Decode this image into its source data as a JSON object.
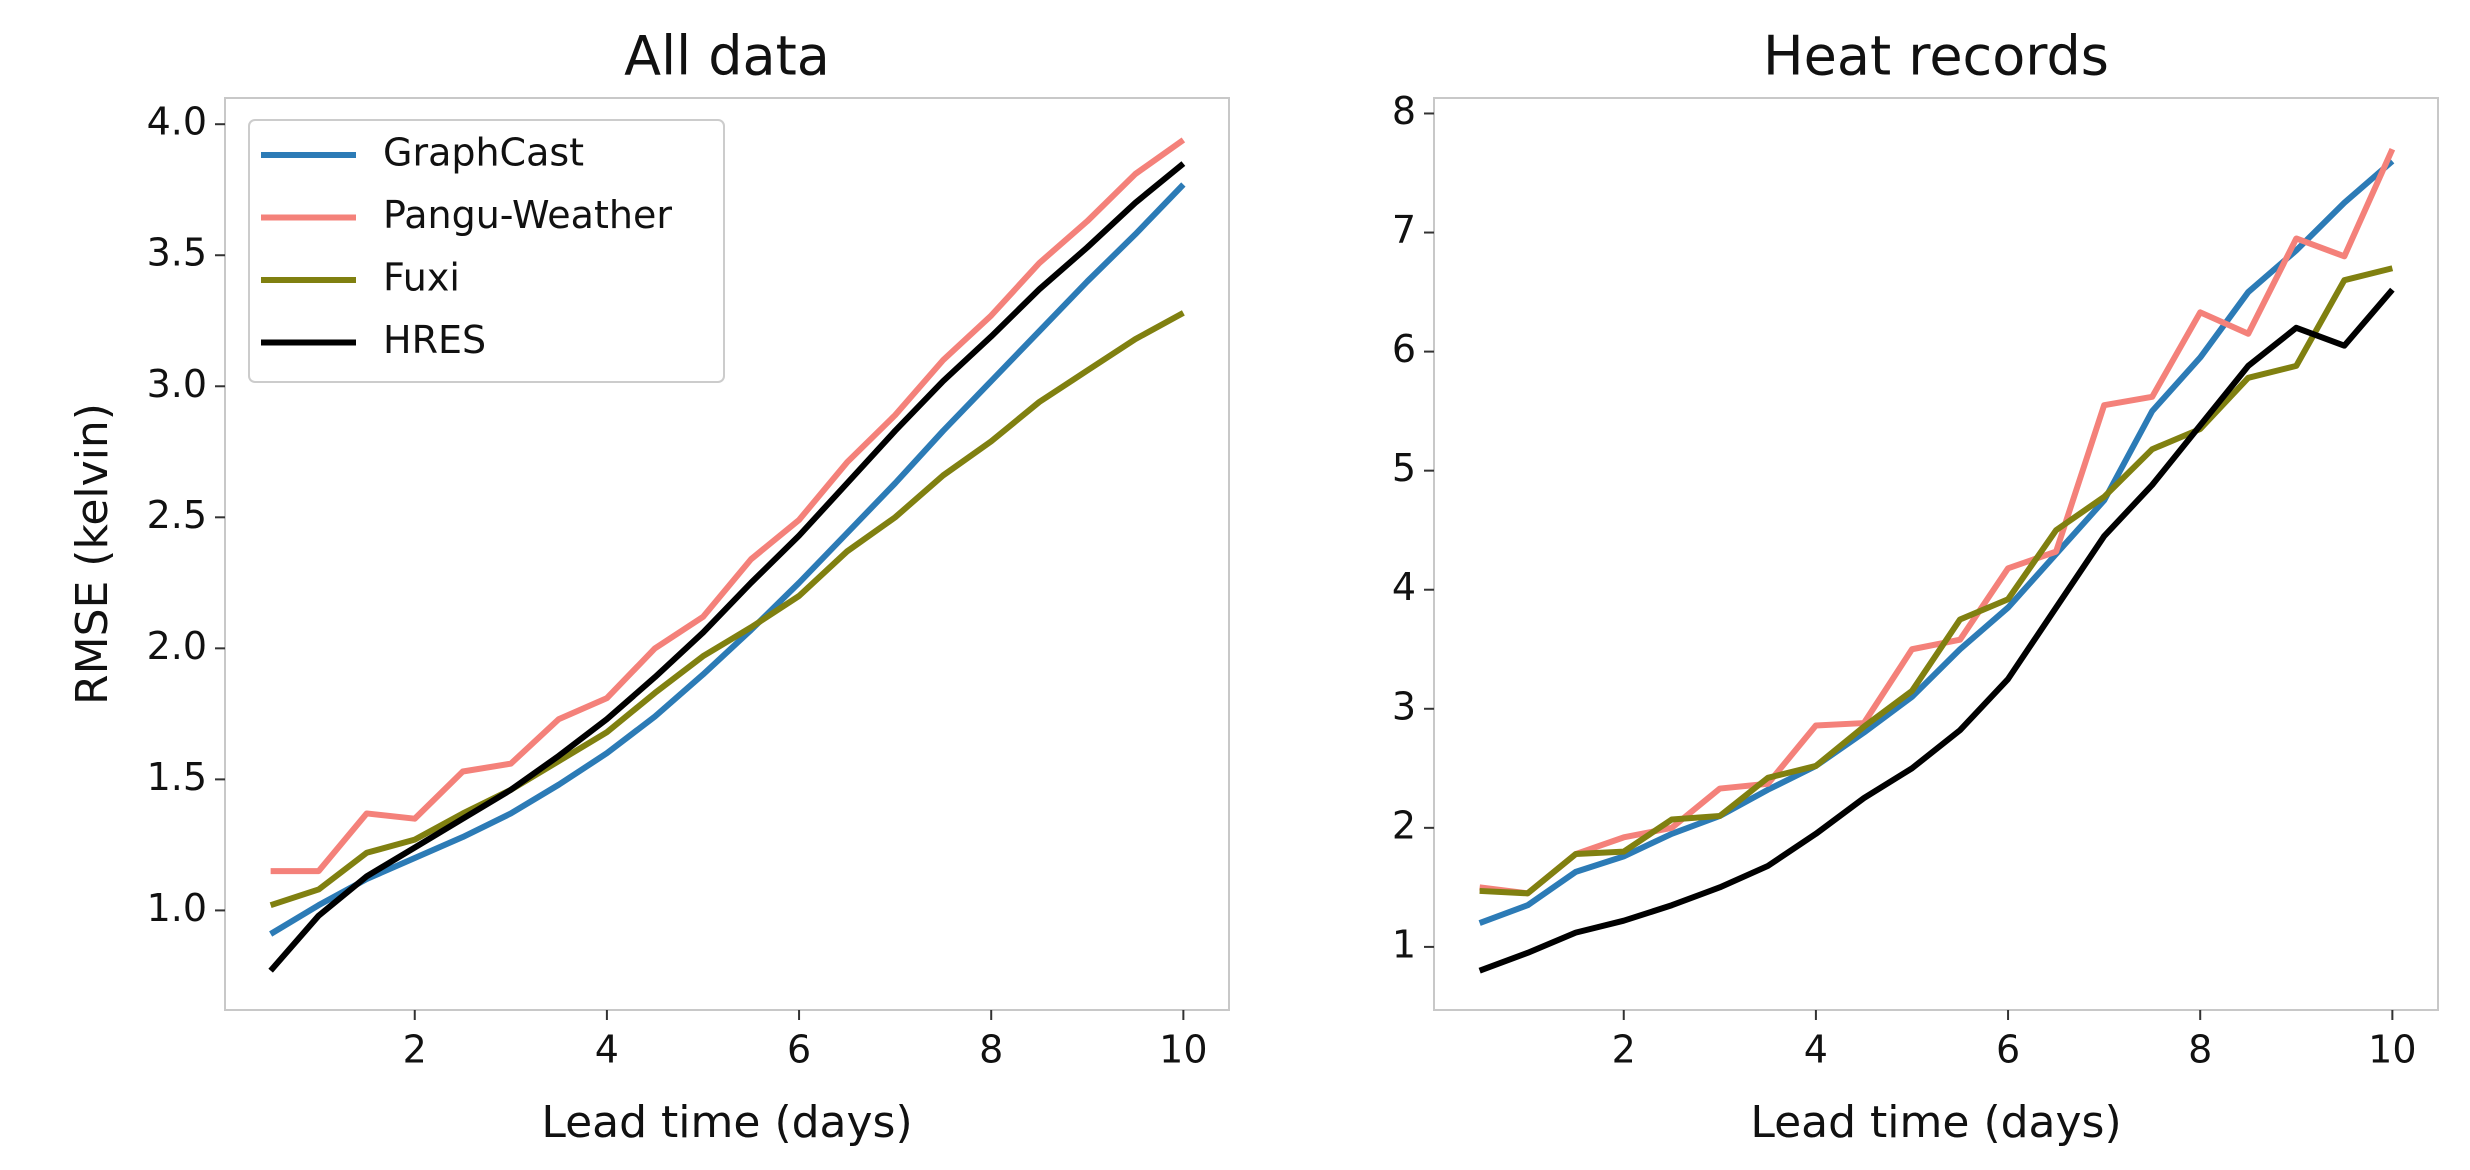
{
  "chart_data": [
    {
      "type": "line",
      "title": "All data",
      "x_label": "Lead time (days)",
      "y_label": "RMSE (kelvin)",
      "x": [
        0.5,
        1,
        1.5,
        2,
        2.5,
        3,
        3.5,
        4,
        4.5,
        5,
        5.5,
        6,
        6.5,
        7,
        7.5,
        8,
        8.5,
        9,
        9.5,
        10
      ],
      "series": [
        {
          "name": "GraphCast",
          "color": "#2c7bb6",
          "values": [
            0.91,
            1.02,
            1.12,
            1.2,
            1.28,
            1.37,
            1.48,
            1.6,
            1.74,
            1.9,
            2.07,
            2.25,
            2.44,
            2.63,
            2.83,
            3.02,
            3.21,
            3.4,
            3.58,
            3.77
          ]
        },
        {
          "name": "Pangu-Weather",
          "color": "#f4817a",
          "values": [
            1.15,
            1.15,
            1.37,
            1.35,
            1.53,
            1.56,
            1.73,
            1.81,
            2.0,
            2.12,
            2.34,
            2.49,
            2.71,
            2.89,
            3.1,
            3.27,
            3.47,
            3.63,
            3.81,
            3.94
          ]
        },
        {
          "name": "Fuxi",
          "color": "#808010",
          "values": [
            1.02,
            1.08,
            1.22,
            1.27,
            1.37,
            1.46,
            1.57,
            1.68,
            1.83,
            1.97,
            2.08,
            2.2,
            2.37,
            2.5,
            2.66,
            2.79,
            2.94,
            3.06,
            3.18,
            3.28
          ]
        },
        {
          "name": "HRES",
          "color": "#000000",
          "values": [
            0.77,
            0.98,
            1.13,
            1.24,
            1.35,
            1.46,
            1.59,
            1.73,
            1.89,
            2.06,
            2.25,
            2.43,
            2.63,
            2.83,
            3.02,
            3.19,
            3.37,
            3.53,
            3.7,
            3.85
          ]
        }
      ],
      "xlim": [
        0.025,
        10.475
      ],
      "ylim": [
        0.62,
        4.1
      ],
      "xticks": [
        2,
        4,
        6,
        8,
        10
      ],
      "yticks": [
        {
          "value": 1,
          "label": "1.0"
        },
        1.5,
        {
          "value": 2,
          "label": "2.0"
        },
        2.5,
        {
          "value": 3,
          "label": "3.0"
        },
        3.5,
        {
          "value": 4,
          "label": "4.0"
        }
      ],
      "legend": "upper left",
      "grid": false
    },
    {
      "type": "line",
      "title": "Heat records",
      "x_label": "Lead time (days)",
      "x": [
        0.5,
        1,
        1.5,
        2,
        2.5,
        3,
        3.5,
        4,
        4.5,
        5,
        5.5,
        6,
        6.5,
        7,
        7.5,
        8,
        8.5,
        9,
        9.5,
        10
      ],
      "series": [
        {
          "name": "GraphCast",
          "color": "#2c7bb6",
          "values": [
            1.2,
            1.35,
            1.63,
            1.76,
            1.95,
            2.1,
            2.32,
            2.52,
            2.8,
            3.1,
            3.5,
            3.85,
            4.3,
            4.75,
            5.5,
            5.95,
            6.5,
            6.85,
            7.25,
            7.6
          ]
        },
        {
          "name": "Pangu-Weather",
          "color": "#f4817a",
          "values": [
            1.5,
            1.45,
            1.78,
            1.92,
            2.0,
            2.33,
            2.37,
            2.86,
            2.88,
            3.5,
            3.58,
            4.18,
            4.32,
            5.55,
            5.62,
            6.33,
            6.15,
            6.95,
            6.8,
            7.7
          ]
        },
        {
          "name": "Fuxi",
          "color": "#808010",
          "values": [
            1.47,
            1.45,
            1.78,
            1.8,
            2.07,
            2.1,
            2.42,
            2.52,
            2.85,
            3.15,
            3.75,
            3.92,
            4.5,
            4.78,
            5.18,
            5.35,
            5.78,
            5.88,
            6.6,
            6.7
          ]
        },
        {
          "name": "HRES",
          "color": "#000000",
          "values": [
            0.8,
            0.95,
            1.12,
            1.22,
            1.35,
            1.5,
            1.68,
            1.95,
            2.25,
            2.5,
            2.82,
            3.25,
            3.85,
            4.45,
            4.88,
            5.38,
            5.88,
            6.2,
            6.05,
            6.52
          ]
        }
      ],
      "xlim": [
        0.025,
        10.475
      ],
      "ylim": [
        0.47,
        8.13
      ],
      "xticks": [
        2,
        4,
        6,
        8,
        10
      ],
      "yticks": [
        1,
        2,
        3,
        4,
        5,
        6,
        7,
        8
      ],
      "grid": false
    }
  ]
}
